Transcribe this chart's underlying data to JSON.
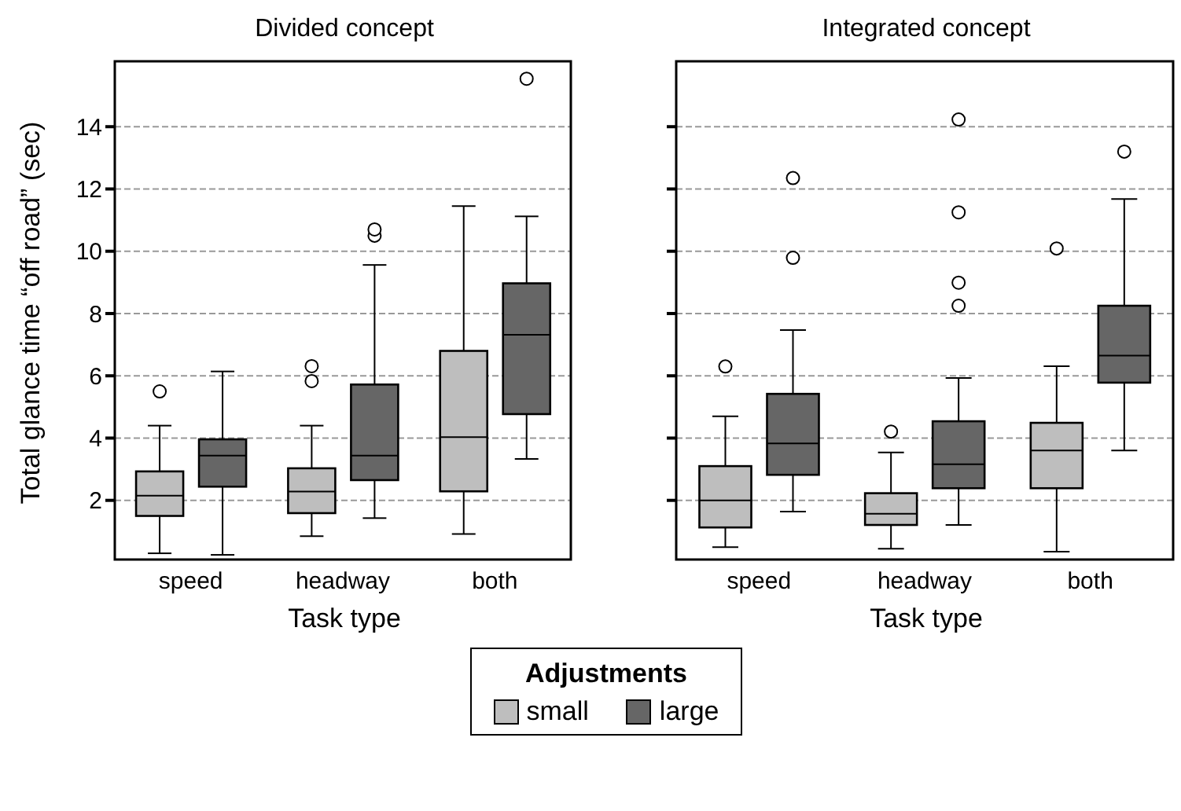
{
  "chart_data": [
    {
      "type": "box",
      "title": "Divided concept",
      "xlabel": "Task type",
      "ylabel": "Total glance time “off road” (sec)",
      "categories": [
        "speed",
        "headway",
        "both"
      ],
      "ylim": [
        0.1,
        16.1
      ],
      "yticks": [
        2,
        4,
        6,
        8,
        10,
        12,
        14
      ],
      "grid": "y",
      "legend": "bottom",
      "legend_title": "Adjustments",
      "series": [
        {
          "name": "small",
          "color": "#bebebe",
          "boxes": [
            {
              "low": 0.3,
              "q1": 1.5,
              "median": 2.15,
              "q3": 2.93,
              "high": 4.4,
              "outliers": [
                5.5
              ]
            },
            {
              "low": 0.85,
              "q1": 1.59,
              "median": 2.28,
              "q3": 3.03,
              "high": 4.4,
              "outliers": [
                5.83,
                6.31
              ]
            },
            {
              "low": 0.92,
              "q1": 2.29,
              "median": 4.03,
              "q3": 6.8,
              "high": 11.45
            }
          ]
        },
        {
          "name": "large",
          "color": "#666666",
          "boxes": [
            {
              "low": 0.25,
              "q1": 2.44,
              "median": 3.44,
              "q3": 3.96,
              "high": 6.14
            },
            {
              "low": 1.43,
              "q1": 2.65,
              "median": 3.44,
              "q3": 5.72,
              "high": 9.56,
              "outliers": [
                10.5,
                10.7
              ]
            },
            {
              "low": 3.33,
              "q1": 4.77,
              "median": 7.32,
              "q3": 8.97,
              "high": 11.12,
              "outliers": [
                15.54
              ]
            }
          ]
        }
      ]
    },
    {
      "type": "box",
      "title": "Integrated concept",
      "xlabel": "Task type",
      "categories": [
        "speed",
        "headway",
        "both"
      ],
      "ylim": [
        0.1,
        16.1
      ],
      "yticks": [
        2,
        4,
        6,
        8,
        10,
        12,
        14
      ],
      "grid": "y",
      "tick_labels": "x",
      "series": [
        {
          "color": "#bebebe",
          "boxes": [
            {
              "low": 0.5,
              "q1": 1.13,
              "median": 2.0,
              "q3": 3.1,
              "high": 4.7,
              "outliers": [
                6.3
              ]
            },
            {
              "low": 0.45,
              "q1": 1.21,
              "median": 1.57,
              "q3": 2.23,
              "high": 3.54,
              "outliers": [
                4.21
              ]
            },
            {
              "low": 0.35,
              "q1": 2.39,
              "median": 3.6,
              "q3": 4.49,
              "high": 6.31,
              "outliers": [
                10.09
              ]
            }
          ]
        },
        {
          "color": "#666666",
          "boxes": [
            {
              "low": 1.64,
              "q1": 2.82,
              "median": 3.83,
              "q3": 5.42,
              "high": 7.47,
              "outliers": [
                9.79,
                12.35
              ]
            },
            {
              "low": 1.21,
              "q1": 2.39,
              "median": 3.16,
              "q3": 4.54,
              "high": 5.93,
              "outliers": [
                8.25,
                8.99,
                11.25,
                14.23
              ]
            },
            {
              "low": 3.6,
              "q1": 5.78,
              "median": 6.65,
              "q3": 8.25,
              "high": 11.68,
              "outliers": [
                13.2
              ]
            }
          ]
        }
      ]
    }
  ]
}
